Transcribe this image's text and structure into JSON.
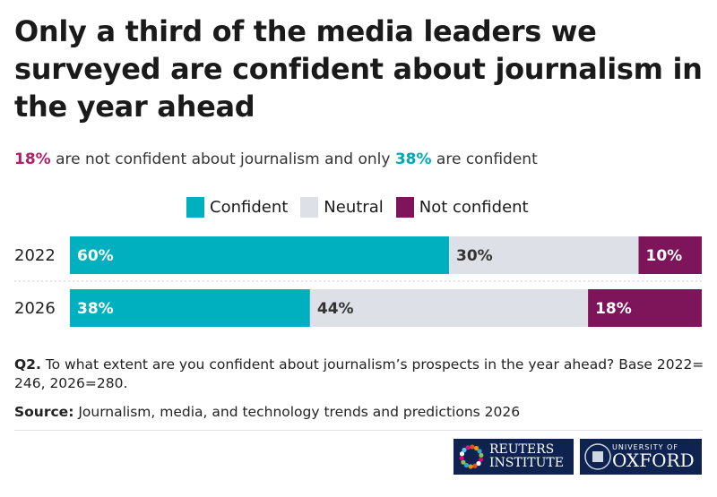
{
  "title": "Only a third of the media leaders we surveyed are confident about journalism in the year ahead",
  "subtitle": {
    "hl1": "18%",
    "t1": " are not confident about journalism and only ",
    "hl2": "38%",
    "t2": " are confident"
  },
  "colors": {
    "Confident": "#00b0bf",
    "Neutral": "#dde0e6",
    "Not confident": "#7e1459",
    "highlight_pink": "#b31f66"
  },
  "chart_data": {
    "type": "bar",
    "orientation": "horizontal",
    "stacked": true,
    "categories": [
      "2022",
      "2026"
    ],
    "legend": "top",
    "xlim": [
      0,
      100
    ],
    "series": [
      {
        "name": "Confident",
        "values": [
          60,
          38
        ],
        "labels": [
          "60%",
          "38%"
        ]
      },
      {
        "name": "Neutral",
        "values": [
          30,
          44
        ],
        "labels": [
          "30%",
          "44%"
        ]
      },
      {
        "name": "Not confident",
        "values": [
          10,
          18
        ],
        "labels": [
          "10%",
          "18%"
        ]
      }
    ]
  },
  "note": {
    "label": "Q2.",
    "text": " To what extent are you confident about journalism’s prospects in the year ahead? Base 2022= 246, 2026=280."
  },
  "source": {
    "label": "Source:",
    "text": " Journalism, media, and technology trends and predictions 2026"
  },
  "logos": {
    "reuters": "REUTERS INSTITUTE",
    "oxford_small": "UNIVERSITY OF",
    "oxford_big": "OXFORD"
  }
}
